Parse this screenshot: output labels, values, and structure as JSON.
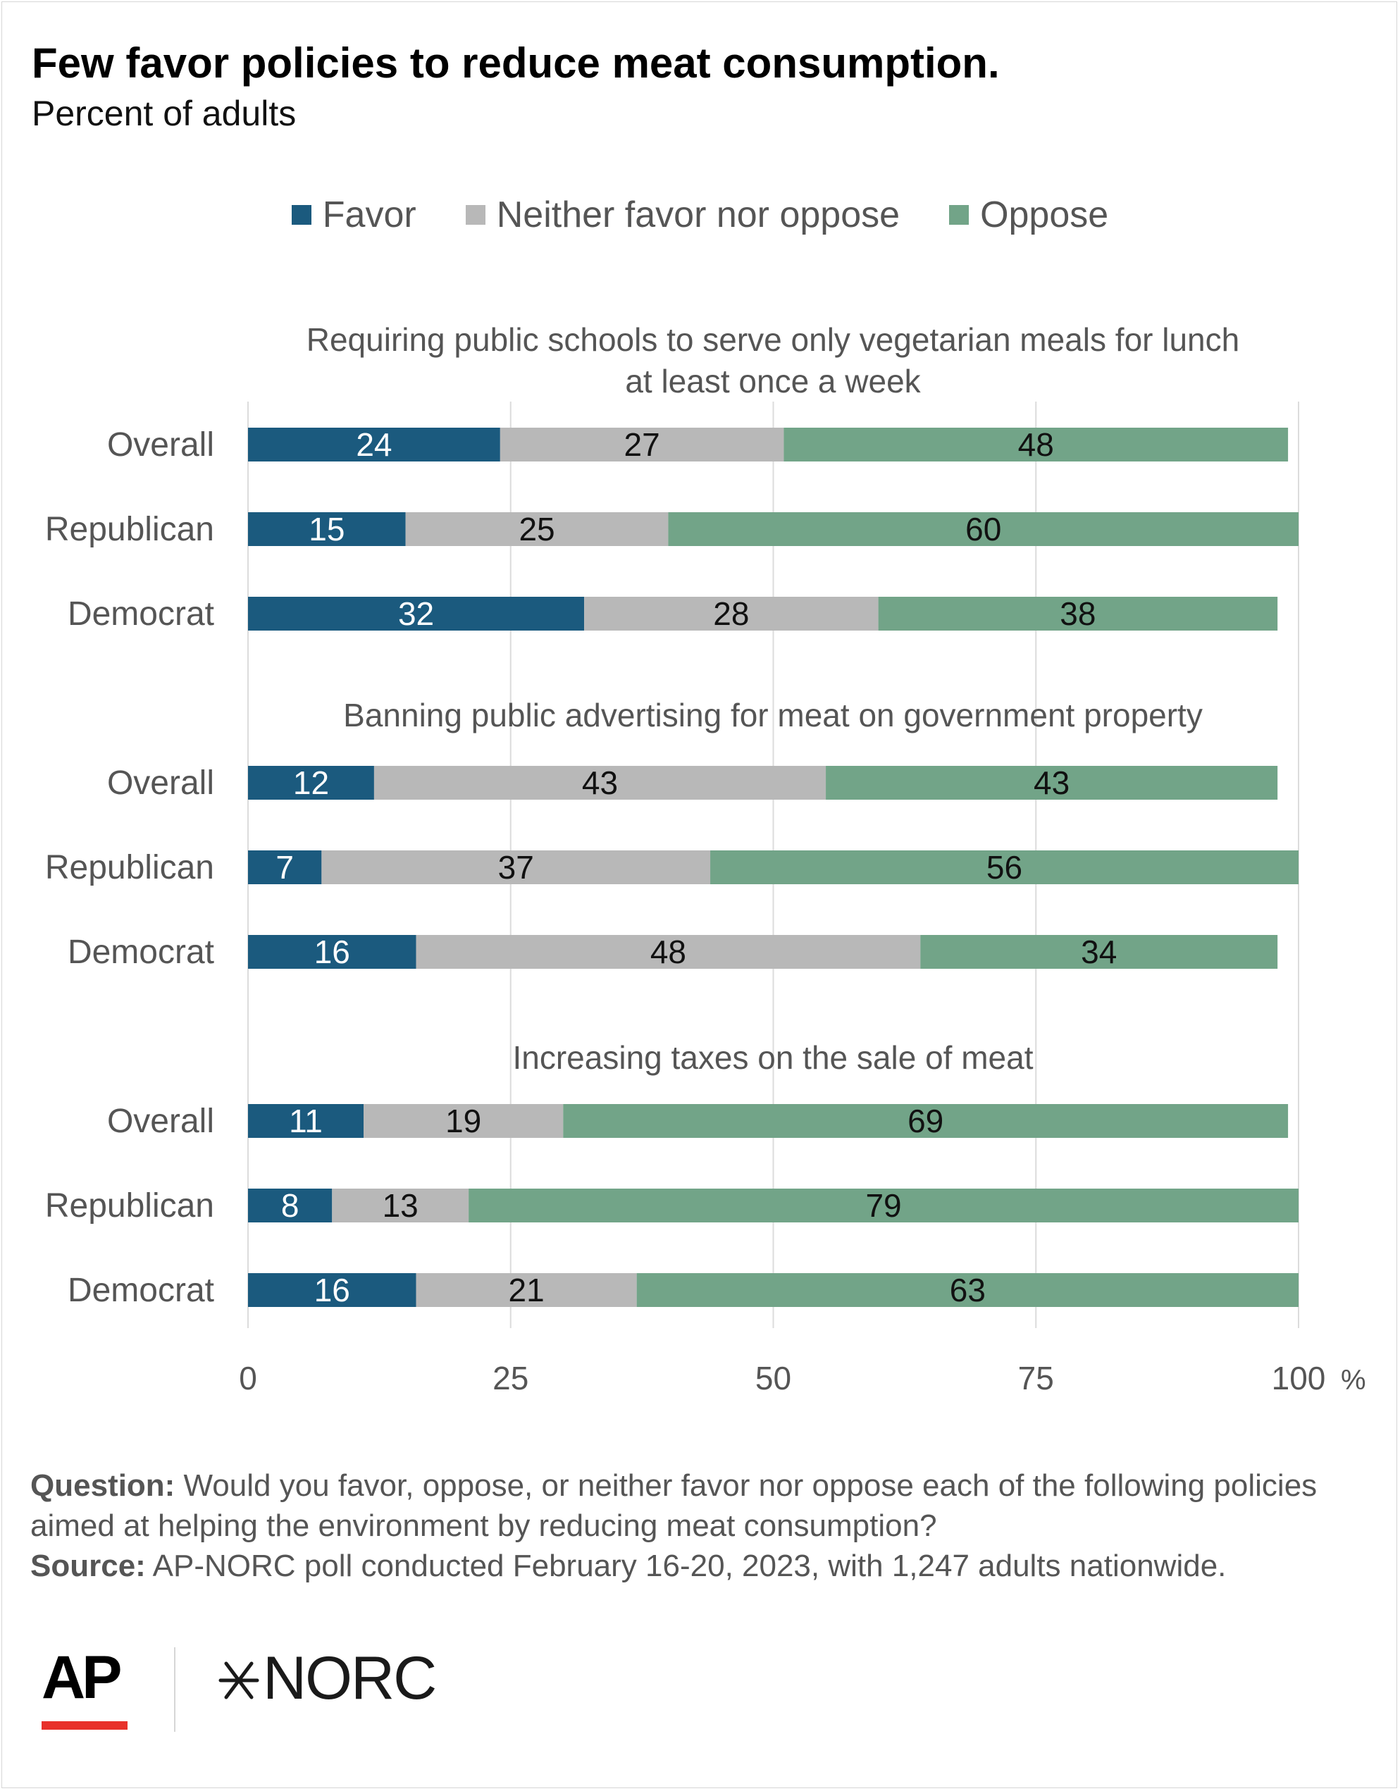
{
  "chart_data": {
    "type": "bar",
    "orientation": "horizontal",
    "stacked": true,
    "title": "Few favor policies to reduce meat consumption.",
    "subtitle": "Percent of adults",
    "legend": {
      "placement": "top-center",
      "items": [
        {
          "name": "Favor",
          "color": "#1b5a7e"
        },
        {
          "name": "Neither favor nor oppose",
          "color": "#b8b8b8"
        },
        {
          "name": "Oppose",
          "color": "#72a488"
        }
      ]
    },
    "xlim": [
      0,
      100
    ],
    "xticks": [
      "0",
      "25",
      "50",
      "75",
      "100"
    ],
    "xunit": "%",
    "grid": true,
    "groups": [
      {
        "title": "Requiring public schools to serve only vegetarian meals for lunch at least once a week",
        "rows": [
          {
            "label": "Overall",
            "values": [
              24,
              27,
              48
            ]
          },
          {
            "label": "Republican",
            "values": [
              15,
              25,
              60
            ]
          },
          {
            "label": "Democrat",
            "values": [
              32,
              28,
              38
            ]
          }
        ]
      },
      {
        "title": "Banning public advertising for meat on government property",
        "rows": [
          {
            "label": "Overall",
            "values": [
              12,
              43,
              43
            ]
          },
          {
            "label": "Republican",
            "values": [
              7,
              37,
              56
            ]
          },
          {
            "label": "Democrat",
            "values": [
              16,
              48,
              34
            ]
          }
        ]
      },
      {
        "title": "Increasing taxes on the sale of meat",
        "rows": [
          {
            "label": "Overall",
            "values": [
              11,
              19,
              69
            ]
          },
          {
            "label": "Republican",
            "values": [
              8,
              13,
              79
            ]
          },
          {
            "label": "Democrat",
            "values": [
              16,
              21,
              63
            ]
          }
        ]
      }
    ]
  },
  "footnotes": {
    "question_label": "Question:",
    "question_text": " Would you favor, oppose, or neither favor nor oppose each of the following policies aimed at helping the environment by reducing meat consumption?",
    "source_label": "Source:",
    "source_text": " AP-NORC poll conducted February 16-20, 2023, with 1,247 adults nationwide."
  },
  "logos": {
    "ap": "AP",
    "norc": "NORC"
  }
}
